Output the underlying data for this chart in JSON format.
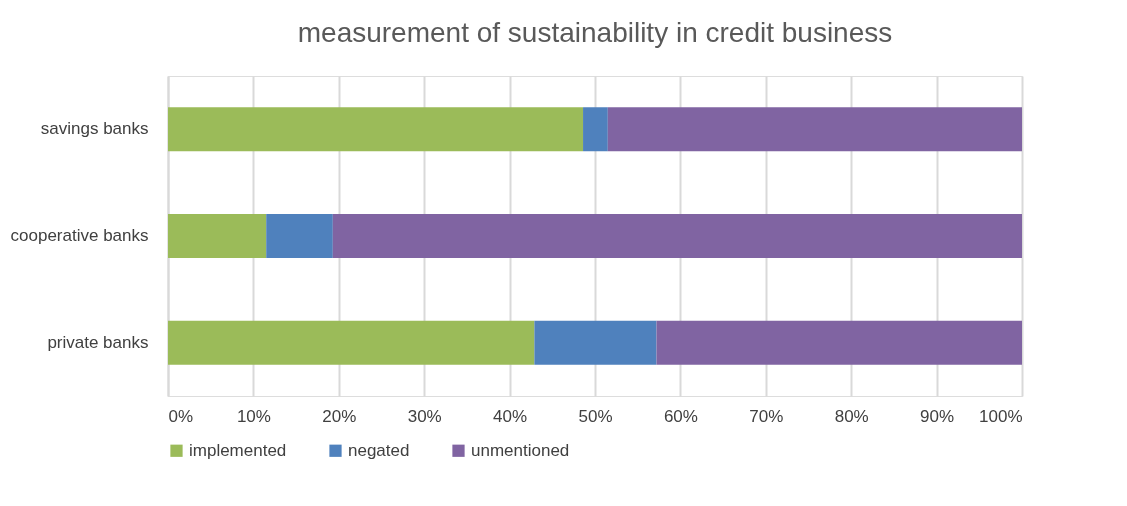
{
  "chart_data": {
    "type": "bar",
    "orientation": "horizontal",
    "stacked": true,
    "title": "measurement of sustainability in credit business",
    "categories": [
      "savings banks",
      "cooperative banks",
      "private banks"
    ],
    "series": [
      {
        "name": "implemented",
        "color": "#9bbb59",
        "values": [
          48.6,
          11.5,
          42.9
        ]
      },
      {
        "name": "negated",
        "color": "#4f81bd",
        "values": [
          2.9,
          7.8,
          14.3
        ]
      },
      {
        "name": "unmentioned",
        "color": "#8064a2",
        "values": [
          48.5,
          80.7,
          42.8
        ]
      }
    ],
    "xlim": [
      0,
      100
    ],
    "xticks": [
      {
        "value": 0,
        "label": "0%"
      },
      {
        "value": 10,
        "label": "10%"
      },
      {
        "value": 20,
        "label": "20%"
      },
      {
        "value": 30,
        "label": "30%"
      },
      {
        "value": 40,
        "label": "40%"
      },
      {
        "value": 50,
        "label": "50%"
      },
      {
        "value": 60,
        "label": "60%"
      },
      {
        "value": 70,
        "label": "70%"
      },
      {
        "value": 80,
        "label": "80%"
      },
      {
        "value": 90,
        "label": "90%"
      },
      {
        "value": 100,
        "label": "100%"
      }
    ],
    "grid": "x",
    "legend": "bottom"
  }
}
